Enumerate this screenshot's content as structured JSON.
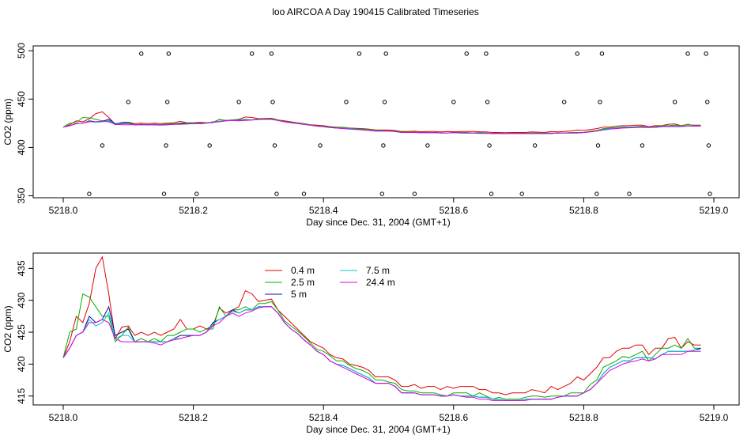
{
  "title": "loo AIRCOA A  Day 190415  Calibrated Timeseries",
  "chart_data": [
    {
      "type": "scatter+line",
      "ylabel": "CO2 (ppm)",
      "xlabel": "Day since Dec. 31, 2004 (GMT+1)",
      "xlim": [
        5218.0,
        5219.0
      ],
      "ylim": [
        348,
        505
      ],
      "xticks": [
        "5218.0",
        "5218.2",
        "5218.4",
        "5218.6",
        "5218.8",
        "5219.0"
      ],
      "yticks": [
        "350",
        "400",
        "450",
        "500"
      ],
      "calibration_points": {
        "x": [
          5218.04,
          5218.06,
          5218.1,
          5218.12,
          5218.155,
          5218.158,
          5218.16,
          5218.162,
          5218.205,
          5218.225,
          5218.27,
          5218.29,
          5218.32,
          5218.322,
          5218.325,
          5218.328,
          5218.37,
          5218.395,
          5218.435,
          5218.455,
          5218.49,
          5218.492,
          5218.494,
          5218.496,
          5218.54,
          5218.56,
          5218.6,
          5218.62,
          5218.65,
          5218.652,
          5218.655,
          5218.658,
          5218.705,
          5218.725,
          5218.77,
          5218.79,
          5218.82,
          5218.822,
          5218.825,
          5218.828,
          5218.87,
          5218.89,
          5218.94,
          5218.96,
          5218.988,
          5218.99,
          5218.992,
          5218.994
        ],
        "y": [
          352,
          402,
          447,
          497,
          352,
          402,
          447,
          497,
          352,
          402,
          447,
          497,
          497,
          447,
          402,
          352,
          352,
          402,
          447,
          497,
          352,
          402,
          447,
          497,
          352,
          402,
          447,
          497,
          497,
          447,
          402,
          352,
          352,
          402,
          447,
          497,
          352,
          402,
          447,
          497,
          352,
          402,
          447,
          497,
          497,
          447,
          402,
          352
        ]
      }
    },
    {
      "type": "line",
      "ylabel": "CO2 (ppm)",
      "xlabel": "Day since Dec. 31, 2004 (GMT+1)",
      "xlim": [
        5218.0,
        5219.0
      ],
      "ylim": [
        413.6,
        437.4
      ],
      "xticks": [
        "5218.0",
        "5218.2",
        "5218.4",
        "5218.6",
        "5218.8",
        "5219.0"
      ],
      "yticks": [
        "415",
        "420",
        "425",
        "430",
        "435"
      ],
      "legend_position": "top-left",
      "x": [
        5218.0,
        5218.01,
        5218.02,
        5218.03,
        5218.04,
        5218.05,
        5218.06,
        5218.07,
        5218.08,
        5218.09,
        5218.1,
        5218.11,
        5218.12,
        5218.13,
        5218.14,
        5218.15,
        5218.16,
        5218.17,
        5218.18,
        5218.19,
        5218.2,
        5218.21,
        5218.22,
        5218.23,
        5218.24,
        5218.25,
        5218.26,
        5218.27,
        5218.28,
        5218.29,
        5218.3,
        5218.31,
        5218.32,
        5218.33,
        5218.34,
        5218.35,
        5218.36,
        5218.37,
        5218.38,
        5218.39,
        5218.4,
        5218.41,
        5218.42,
        5218.43,
        5218.44,
        5218.45,
        5218.46,
        5218.47,
        5218.48,
        5218.49,
        5218.5,
        5218.51,
        5218.52,
        5218.53,
        5218.54,
        5218.55,
        5218.56,
        5218.57,
        5218.58,
        5218.59,
        5218.6,
        5218.61,
        5218.62,
        5218.63,
        5218.64,
        5218.65,
        5218.66,
        5218.67,
        5218.68,
        5218.69,
        5218.7,
        5218.71,
        5218.72,
        5218.73,
        5218.74,
        5218.75,
        5218.76,
        5218.77,
        5218.78,
        5218.79,
        5218.8,
        5218.81,
        5218.82,
        5218.83,
        5218.84,
        5218.85,
        5218.86,
        5218.87,
        5218.88,
        5218.89,
        5218.9,
        5218.91,
        5218.92,
        5218.93,
        5218.94,
        5218.95,
        5218.96,
        5218.97,
        5218.98
      ],
      "series": [
        {
          "name": "0.4 m",
          "color": "#e00000",
          "values": [
            421.0,
            423.5,
            427.5,
            426.5,
            429.5,
            435.0,
            436.8,
            431.0,
            424.0,
            425.8,
            426.0,
            424.5,
            425.0,
            424.5,
            425.0,
            424.5,
            425.0,
            425.5,
            427.0,
            425.5,
            425.5,
            426.0,
            425.5,
            426.0,
            428.8,
            428.0,
            428.5,
            429.0,
            431.5,
            431.0,
            429.8,
            430.0,
            430.2,
            428.5,
            427.5,
            426.5,
            425.5,
            424.5,
            423.5,
            423.0,
            422.5,
            421.5,
            421.0,
            420.8,
            420.0,
            419.8,
            419.5,
            419.0,
            418.0,
            418.0,
            418.0,
            417.5,
            416.5,
            416.5,
            416.8,
            416.2,
            416.5,
            416.5,
            416.0,
            416.5,
            416.2,
            416.5,
            416.5,
            416.5,
            416.0,
            416.0,
            415.5,
            415.5,
            415.2,
            415.5,
            415.5,
            415.5,
            416.0,
            415.8,
            415.5,
            416.5,
            416.0,
            416.5,
            417.0,
            418.0,
            417.5,
            418.5,
            419.5,
            421.0,
            421.0,
            422.0,
            422.5,
            422.5,
            423.0,
            423.0,
            421.5,
            422.5,
            422.5,
            424.0,
            424.2,
            422.5,
            423.5,
            423.0,
            423.0
          ]
        },
        {
          "name": "2.5 m",
          "color": "#00b000",
          "values": [
            421.0,
            425.0,
            425.5,
            431.0,
            430.5,
            429.0,
            427.5,
            427.5,
            423.5,
            424.5,
            425.8,
            423.5,
            424.0,
            423.5,
            424.0,
            423.5,
            424.5,
            424.5,
            425.0,
            425.5,
            425.5,
            425.0,
            425.5,
            425.5,
            429.0,
            427.5,
            428.5,
            428.5,
            429.0,
            428.5,
            429.5,
            429.5,
            429.8,
            428.5,
            426.8,
            426.0,
            425.2,
            424.3,
            423.3,
            422.3,
            422.0,
            421.3,
            420.5,
            420.5,
            419.8,
            419.3,
            419.0,
            418.5,
            417.5,
            417.5,
            417.2,
            417.0,
            416.0,
            415.8,
            415.8,
            415.5,
            415.5,
            415.5,
            415.2,
            415.0,
            415.5,
            415.5,
            415.5,
            415.0,
            415.5,
            415.0,
            414.5,
            414.8,
            414.5,
            414.5,
            414.5,
            414.8,
            415.0,
            415.0,
            414.8,
            415.0,
            415.0,
            415.0,
            415.5,
            415.5,
            415.5,
            416.8,
            417.5,
            419.5,
            420.0,
            420.5,
            421.2,
            421.0,
            421.5,
            422.0,
            420.5,
            421.5,
            422.5,
            422.5,
            423.0,
            422.5,
            424.0,
            422.5,
            422.5
          ]
        },
        {
          "name": "5 m",
          "color": "#1010a0",
          "values": [
            421.0,
            422.5,
            424.5,
            425.0,
            427.5,
            426.5,
            427.0,
            429.0,
            424.5,
            425.0,
            425.5,
            423.5,
            423.5,
            423.5,
            423.5,
            423.5,
            423.5,
            424.0,
            424.5,
            424.5,
            424.5,
            424.5,
            425.0,
            426.5,
            427.0,
            427.5,
            428.5,
            428.0,
            428.5,
            428.5,
            429.0,
            429.0,
            429.0,
            428.0,
            426.5,
            425.5,
            424.8,
            423.8,
            423.0,
            422.0,
            421.5,
            420.5,
            420.0,
            419.8,
            419.3,
            418.8,
            418.3,
            417.8,
            417.0,
            417.0,
            417.0,
            416.5,
            415.5,
            415.5,
            415.5,
            415.2,
            415.2,
            415.2,
            415.0,
            415.0,
            415.2,
            415.0,
            415.0,
            415.0,
            414.8,
            414.8,
            414.5,
            414.5,
            414.3,
            414.3,
            414.3,
            414.5,
            414.5,
            414.5,
            414.5,
            414.5,
            414.8,
            415.0,
            415.0,
            415.0,
            415.5,
            416.0,
            417.0,
            418.5,
            419.5,
            420.0,
            420.5,
            420.5,
            421.0,
            421.0,
            421.0,
            420.8,
            421.5,
            422.0,
            422.0,
            422.0,
            422.0,
            422.2,
            422.5
          ]
        },
        {
          "name": "7.5 m",
          "color": "#00c8c8",
          "values": [
            421.0,
            422.5,
            424.5,
            425.0,
            427.0,
            426.0,
            426.5,
            428.0,
            424.0,
            424.5,
            424.5,
            423.5,
            423.5,
            423.5,
            423.5,
            423.5,
            423.5,
            424.0,
            424.0,
            424.3,
            424.5,
            424.5,
            425.0,
            426.3,
            427.0,
            427.5,
            428.3,
            428.0,
            428.5,
            428.5,
            429.0,
            429.0,
            429.0,
            428.0,
            426.5,
            425.5,
            424.8,
            423.8,
            423.0,
            422.0,
            421.5,
            420.5,
            420.0,
            419.8,
            419.3,
            418.8,
            418.3,
            417.8,
            417.0,
            417.0,
            417.0,
            416.5,
            415.5,
            415.5,
            415.5,
            415.2,
            415.2,
            415.2,
            415.0,
            415.0,
            415.2,
            415.0,
            415.0,
            415.0,
            414.8,
            414.8,
            414.5,
            414.5,
            414.3,
            414.3,
            414.3,
            414.5,
            414.5,
            414.5,
            414.5,
            414.5,
            414.8,
            415.0,
            415.0,
            415.0,
            415.5,
            416.0,
            417.0,
            418.5,
            419.5,
            420.0,
            420.5,
            420.5,
            421.0,
            421.0,
            421.0,
            420.8,
            421.5,
            422.0,
            422.0,
            422.0,
            422.0,
            422.2,
            422.3
          ]
        },
        {
          "name": "24.4 m",
          "color": "#e000e0",
          "values": [
            421.0,
            422.5,
            424.5,
            425.0,
            426.5,
            426.5,
            427.0,
            426.5,
            424.0,
            423.5,
            423.5,
            423.5,
            423.5,
            423.5,
            423.3,
            423.0,
            423.5,
            423.8,
            424.0,
            424.3,
            424.5,
            424.5,
            425.0,
            426.0,
            426.5,
            427.5,
            428.0,
            427.5,
            428.0,
            428.3,
            428.8,
            429.0,
            429.0,
            428.0,
            426.5,
            425.5,
            424.8,
            423.8,
            423.0,
            422.0,
            421.5,
            420.5,
            420.0,
            419.5,
            419.0,
            418.5,
            418.0,
            417.5,
            417.0,
            417.0,
            417.0,
            416.5,
            415.5,
            415.5,
            415.5,
            415.2,
            415.2,
            415.2,
            415.0,
            415.0,
            415.2,
            415.0,
            414.8,
            414.8,
            414.5,
            414.5,
            414.3,
            414.3,
            414.3,
            414.3,
            414.3,
            414.3,
            414.5,
            414.5,
            414.5,
            414.5,
            414.8,
            415.0,
            415.0,
            415.0,
            415.5,
            416.0,
            417.0,
            418.0,
            419.0,
            419.5,
            420.0,
            420.3,
            420.5,
            420.8,
            420.5,
            420.8,
            421.5,
            421.5,
            421.5,
            421.5,
            422.0,
            422.0,
            422.0
          ]
        }
      ]
    }
  ]
}
